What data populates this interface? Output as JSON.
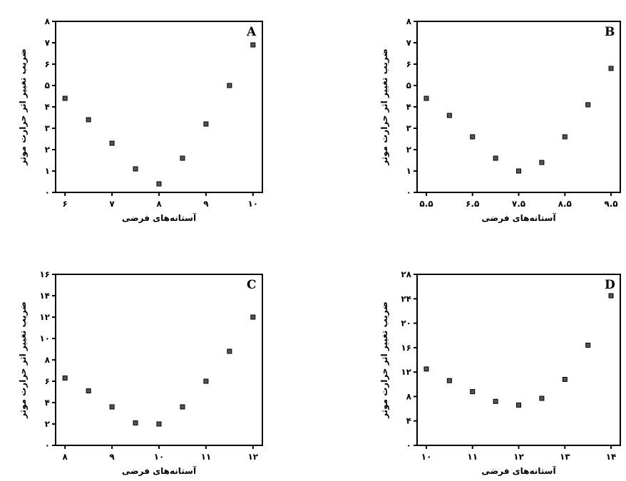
{
  "chart_data": [
    {
      "type": "scatter",
      "panel_label": "A",
      "xlabel": "آستانه‌های فرضی",
      "ylabel": "ضریب تغییر اثر حرارت موثر",
      "xlim": [
        5.8,
        10.2
      ],
      "ylim": [
        0,
        8
      ],
      "x_ticks": [
        6,
        7,
        8,
        9,
        10
      ],
      "x_tick_labels": [
        "۶",
        "۷",
        "۸",
        "۹",
        "۱۰"
      ],
      "y_ticks": [
        0,
        1,
        2,
        3,
        4,
        5,
        6,
        7,
        8
      ],
      "y_tick_labels": [
        "۰",
        "۱",
        "۲",
        "۳",
        "۴",
        "۵",
        "۶",
        "۷",
        "۸"
      ],
      "points": [
        {
          "x": 6.0,
          "y": 4.4
        },
        {
          "x": 6.5,
          "y": 3.4
        },
        {
          "x": 7.0,
          "y": 2.3
        },
        {
          "x": 7.5,
          "y": 1.1
        },
        {
          "x": 8.0,
          "y": 0.4
        },
        {
          "x": 8.5,
          "y": 1.6
        },
        {
          "x": 9.0,
          "y": 3.2
        },
        {
          "x": 9.5,
          "y": 5.0
        },
        {
          "x": 10.0,
          "y": 6.9
        }
      ],
      "grid": false
    },
    {
      "type": "scatter",
      "panel_label": "B",
      "xlabel": "آستانه‌های فرضی",
      "ylabel": "ضریب تغییر اثر حرارت موثر",
      "xlim": [
        5.3,
        9.7
      ],
      "ylim": [
        0,
        8
      ],
      "x_ticks": [
        5.5,
        6.5,
        7.5,
        8.5,
        9.5
      ],
      "x_tick_labels": [
        "۵.۵",
        "۶.۵",
        "۷.۵",
        "۸.۵",
        "۹.۵"
      ],
      "y_ticks": [
        0,
        1,
        2,
        3,
        4,
        5,
        6,
        7,
        8
      ],
      "y_tick_labels": [
        "۰",
        "۱",
        "۲",
        "۳",
        "۴",
        "۵",
        "۶",
        "۷",
        "۸"
      ],
      "points": [
        {
          "x": 5.5,
          "y": 4.4
        },
        {
          "x": 6.0,
          "y": 3.6
        },
        {
          "x": 6.5,
          "y": 2.6
        },
        {
          "x": 7.0,
          "y": 1.6
        },
        {
          "x": 7.5,
          "y": 1.0
        },
        {
          "x": 8.0,
          "y": 1.4
        },
        {
          "x": 8.5,
          "y": 2.6
        },
        {
          "x": 9.0,
          "y": 4.1
        },
        {
          "x": 9.5,
          "y": 5.8
        }
      ],
      "grid": false
    },
    {
      "type": "scatter",
      "panel_label": "C",
      "xlabel": "آستانه‌های فرضی",
      "ylabel": "ضریب تغییر اثر حرارت موثر",
      "xlim": [
        7.8,
        12.2
      ],
      "ylim": [
        0,
        16
      ],
      "x_ticks": [
        8,
        9,
        10,
        11,
        12
      ],
      "x_tick_labels": [
        "۸",
        "۹",
        "۱۰",
        "۱۱",
        "۱۲"
      ],
      "y_ticks": [
        0,
        2,
        4,
        6,
        8,
        10,
        12,
        14,
        16
      ],
      "y_tick_labels": [
        "۰",
        "۲",
        "۴",
        "۶",
        "۸",
        "۱۰",
        "۱۲",
        "۱۴",
        "۱۶"
      ],
      "points": [
        {
          "x": 8.0,
          "y": 6.3
        },
        {
          "x": 8.5,
          "y": 5.1
        },
        {
          "x": 9.0,
          "y": 3.6
        },
        {
          "x": 9.5,
          "y": 2.1
        },
        {
          "x": 10.0,
          "y": 2.0
        },
        {
          "x": 10.5,
          "y": 3.6
        },
        {
          "x": 11.0,
          "y": 6.0
        },
        {
          "x": 11.5,
          "y": 8.8
        },
        {
          "x": 12.0,
          "y": 12.0
        }
      ],
      "grid": false
    },
    {
      "type": "scatter",
      "panel_label": "D",
      "xlabel": "آستانه‌های فرضی",
      "ylabel": "ضریب تغییر اثر حرارت موثر",
      "xlim": [
        9.8,
        14.2
      ],
      "ylim": [
        0,
        28
      ],
      "x_ticks": [
        10,
        11,
        12,
        13,
        14
      ],
      "x_tick_labels": [
        "۱۰",
        "۱۱",
        "۱۲",
        "۱۳",
        "۱۴"
      ],
      "y_ticks": [
        0,
        4,
        8,
        12,
        16,
        20,
        24,
        28
      ],
      "y_tick_labels": [
        "۰",
        "۴",
        "۸",
        "۱۲",
        "۱۶",
        "۲۰",
        "۲۴",
        "۲۸"
      ],
      "points": [
        {
          "x": 10.0,
          "y": 12.5
        },
        {
          "x": 10.5,
          "y": 10.6
        },
        {
          "x": 11.0,
          "y": 8.8
        },
        {
          "x": 11.5,
          "y": 7.2
        },
        {
          "x": 12.0,
          "y": 6.6
        },
        {
          "x": 12.5,
          "y": 7.7
        },
        {
          "x": 13.0,
          "y": 10.8
        },
        {
          "x": 13.5,
          "y": 16.4
        },
        {
          "x": 14.0,
          "y": 24.5
        }
      ],
      "grid": false
    }
  ]
}
